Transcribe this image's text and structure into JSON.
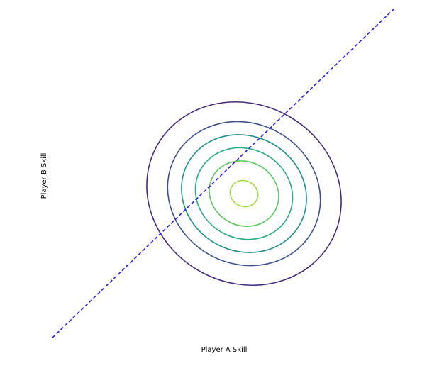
{
  "chart_data": {
    "type": "contour",
    "title": "",
    "xlabel": "Player A Skill",
    "ylabel": "Player B Skill",
    "grid": false,
    "axes_visible": false,
    "xlim": [
      -3.0,
      3.0
    ],
    "ylim": [
      -3.0,
      3.0
    ],
    "gaussian": {
      "mean": [
        0.0,
        0.0
      ],
      "contour_levels": [
        {
          "sigma": 0.5,
          "color": "#a0da39"
        },
        {
          "sigma": 1.25,
          "color": "#5ec962"
        },
        {
          "sigma": 1.75,
          "color": "#28ae80"
        },
        {
          "sigma": 2.25,
          "color": "#21918c"
        },
        {
          "sigma": 2.75,
          "color": "#3b528b"
        },
        {
          "sigma": 3.5,
          "color": "#472d7b"
        }
      ]
    },
    "line": {
      "style": "dashed",
      "color": "#2b1fe8",
      "x": [
        -3.0,
        3.0
      ],
      "y": [
        -2.9,
        3.0
      ]
    }
  }
}
